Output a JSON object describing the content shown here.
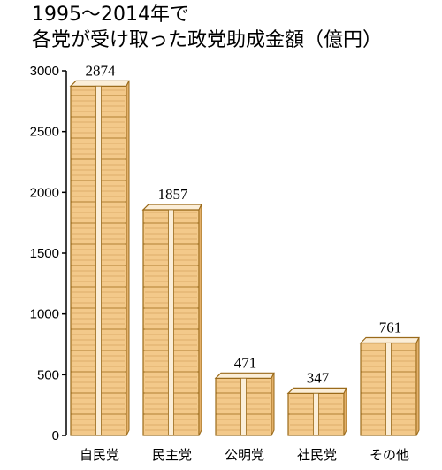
{
  "title_line1": "1995～2014年で",
  "title_line2": "各党が受け取った政党助成金額（億円）",
  "chart_data": {
    "type": "bar",
    "title": "1995～2014年で 各党が受け取った政党助成金額（億円）",
    "categories": [
      "自民党",
      "民主党",
      "公明党",
      "社民党",
      "その他"
    ],
    "values": [
      2874,
      1857,
      471,
      347,
      761
    ],
    "value_labels": [
      "2874",
      "1857",
      "471",
      "347",
      "761"
    ],
    "ylim": [
      0,
      3000
    ],
    "yticks": [
      0,
      500,
      1000,
      1500,
      2000,
      2500,
      3000
    ],
    "ytick_labels": [
      "0",
      "500",
      "1000",
      "1500",
      "2000",
      "2500",
      "3000"
    ],
    "grid": false,
    "colors": {
      "bundle": "#f3c98a",
      "band": "#fbeed8",
      "edge": "#9a6a1a",
      "axis": "#000000"
    }
  }
}
